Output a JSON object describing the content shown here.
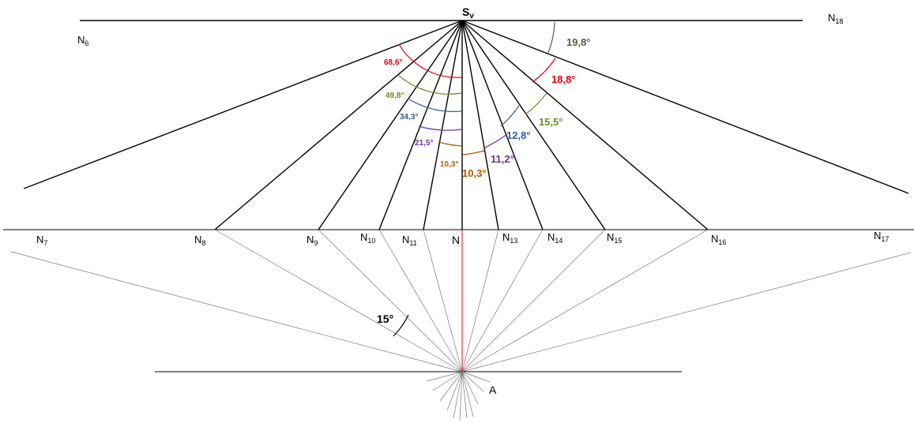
{
  "vertex_label": {
    "main": "S",
    "sub": "v"
  },
  "center_label": "N",
  "observer_label": "A",
  "observer_angle": {
    "text": "15°",
    "degrees": 15
  },
  "point_labels": [
    {
      "main": "N",
      "sub": "6"
    },
    {
      "main": "N",
      "sub": "7"
    },
    {
      "main": "N",
      "sub": "8"
    },
    {
      "main": "N",
      "sub": "9"
    },
    {
      "main": "N",
      "sub": "10"
    },
    {
      "main": "N",
      "sub": "11"
    },
    {
      "main": "N",
      "sub": "13"
    },
    {
      "main": "N",
      "sub": "14"
    },
    {
      "main": "N",
      "sub": "15"
    },
    {
      "main": "N",
      "sub": "16"
    },
    {
      "main": "N",
      "sub": "17"
    },
    {
      "main": "N",
      "sub": "18"
    }
  ],
  "angles_left": [
    {
      "text": "68,6°",
      "color": "#e8000b"
    },
    {
      "text": "49,8°",
      "color": "#6b8e23"
    },
    {
      "text": "34,3°",
      "color": "#2f5f8a"
    },
    {
      "text": "21,5°",
      "color": "#7030a0"
    },
    {
      "text": "10,3°",
      "color": "#b35900"
    }
  ],
  "angles_right": [
    {
      "text": "10,3°",
      "color": "#b35900"
    },
    {
      "text": "11,2°",
      "color": "#7030a0"
    },
    {
      "text": "12,8°",
      "color": "#2f5f8a"
    },
    {
      "text": "15,5°",
      "color": "#6b8e23"
    },
    {
      "text": "18,8°",
      "color": "#e8000b"
    },
    {
      "text": "19,8°",
      "color": "#5a5a40"
    }
  ],
  "colors": {
    "line": "#000000",
    "ray": "#777777",
    "axis": "#e8000b"
  }
}
